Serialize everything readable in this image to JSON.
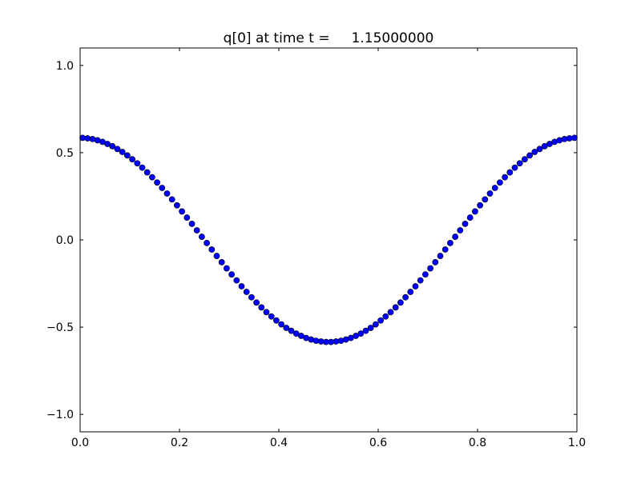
{
  "chart_data": {
    "type": "scatter",
    "title": "q[0] at time t =     1.15000000",
    "xlabel": "",
    "ylabel": "",
    "xlim": [
      0.0,
      1.0
    ],
    "ylim": [
      -1.1,
      1.1
    ],
    "xticks": [
      0.0,
      0.2,
      0.4,
      0.6,
      0.8,
      1.0
    ],
    "xtick_labels": [
      "0.0",
      "0.2",
      "0.4",
      "0.6",
      "0.8",
      "1.0"
    ],
    "yticks": [
      -1.0,
      -0.5,
      0.0,
      0.5,
      1.0
    ],
    "ytick_labels": [
      "−1.0",
      "−0.5",
      "0.0",
      "0.5",
      "1.0"
    ],
    "grid": false,
    "marker": "circle",
    "marker_color": "#0000ff",
    "marker_edge_color": "#000000",
    "x": [
      0.005,
      0.015,
      0.025,
      0.035,
      0.045,
      0.055,
      0.065,
      0.075,
      0.085,
      0.095,
      0.105,
      0.115,
      0.125,
      0.135,
      0.145,
      0.155,
      0.165,
      0.175,
      0.185,
      0.195,
      0.205,
      0.215,
      0.225,
      0.235,
      0.245,
      0.255,
      0.265,
      0.275,
      0.285,
      0.295,
      0.305,
      0.315,
      0.325,
      0.335,
      0.345,
      0.355,
      0.365,
      0.375,
      0.385,
      0.395,
      0.405,
      0.415,
      0.425,
      0.435,
      0.445,
      0.455,
      0.465,
      0.475,
      0.485,
      0.495,
      0.505,
      0.515,
      0.525,
      0.535,
      0.545,
      0.555,
      0.565,
      0.575,
      0.585,
      0.595,
      0.605,
      0.615,
      0.625,
      0.635,
      0.645,
      0.655,
      0.665,
      0.675,
      0.685,
      0.695,
      0.705,
      0.715,
      0.725,
      0.735,
      0.745,
      0.755,
      0.765,
      0.775,
      0.785,
      0.795,
      0.805,
      0.815,
      0.825,
      0.835,
      0.845,
      0.855,
      0.865,
      0.875,
      0.885,
      0.895,
      0.905,
      0.915,
      0.925,
      0.935,
      0.945,
      0.955,
      0.965,
      0.975,
      0.985,
      0.995
    ],
    "y": [
      0.585,
      0.582,
      0.578,
      0.571,
      0.562,
      0.55,
      0.537,
      0.521,
      0.504,
      0.484,
      0.462,
      0.439,
      0.414,
      0.387,
      0.359,
      0.329,
      0.298,
      0.266,
      0.232,
      0.198,
      0.163,
      0.128,
      0.092,
      0.055,
      0.018,
      -0.018,
      -0.055,
      -0.092,
      -0.128,
      -0.163,
      -0.198,
      -0.232,
      -0.266,
      -0.298,
      -0.329,
      -0.359,
      -0.387,
      -0.414,
      -0.439,
      -0.462,
      -0.484,
      -0.504,
      -0.521,
      -0.537,
      -0.55,
      -0.562,
      -0.571,
      -0.578,
      -0.582,
      -0.585,
      -0.585,
      -0.582,
      -0.578,
      -0.571,
      -0.562,
      -0.55,
      -0.537,
      -0.521,
      -0.504,
      -0.484,
      -0.462,
      -0.439,
      -0.414,
      -0.387,
      -0.359,
      -0.329,
      -0.298,
      -0.266,
      -0.232,
      -0.198,
      -0.163,
      -0.128,
      -0.092,
      -0.055,
      -0.018,
      0.018,
      0.055,
      0.092,
      0.128,
      0.163,
      0.198,
      0.232,
      0.266,
      0.298,
      0.329,
      0.359,
      0.387,
      0.414,
      0.439,
      0.462,
      0.484,
      0.504,
      0.521,
      0.537,
      0.55,
      0.562,
      0.571,
      0.578,
      0.582,
      0.585
    ]
  }
}
